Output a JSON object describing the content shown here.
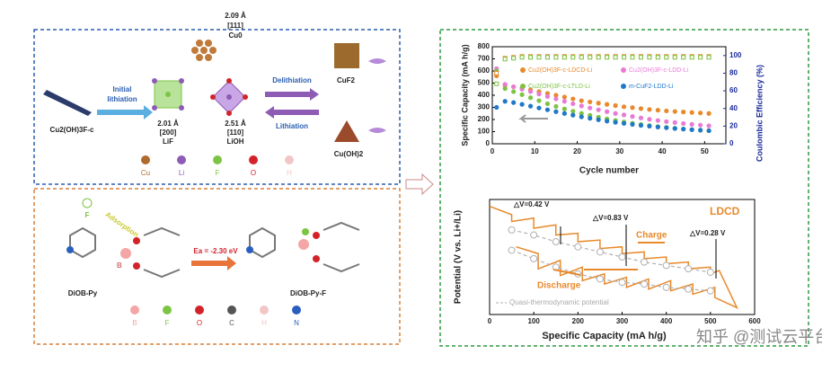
{
  "schematic_top": {
    "precursor": "Cu2(OH)3F-c",
    "initial": "Initial",
    "lithiation1": "lithiation",
    "cu_d": "2.09 Å",
    "cu_plane": "[111]",
    "cu_name": "Cu0",
    "lif_d": "2.01 Å",
    "lif_plane": "[200]",
    "lif_name": "LiF",
    "lioh_d": "2.51 Å",
    "lioh_plane": "[110]",
    "lioh_name": "LiOH",
    "delithiation": "Delithiation",
    "lithiation2": "Lithiation",
    "cuf2": "CuF2",
    "cuoh2": "Cu(OH)2",
    "atoms": [
      "Cu",
      "Li",
      "F",
      "O",
      "H"
    ]
  },
  "schematic_bottom": {
    "f_label": "F",
    "adsorption": "Adsorption",
    "b_label": "B",
    "energy": "Ea = -2.30 eV",
    "reactant": "DiOB-Py",
    "product": "DiOB-Py-F",
    "atoms": [
      "B",
      "F",
      "O",
      "C",
      "H",
      "N"
    ]
  },
  "watermark": "知乎 @测试云平台",
  "chart_data": [
    {
      "type": "scatter",
      "xlabel": "Cycle number",
      "ylabel": "Specific Capacity (mA h/g)",
      "y2label": "Coulombic Efficiency (%)",
      "x": [
        1,
        3,
        5,
        7,
        9,
        11,
        13,
        15,
        17,
        19,
        21,
        23,
        25,
        27,
        29,
        31,
        33,
        35,
        37,
        39,
        41,
        43,
        45,
        47,
        49,
        51
      ],
      "xlim": [
        0,
        55
      ],
      "xticks": [
        0,
        10,
        20,
        30,
        40,
        50
      ],
      "ylim": [
        0,
        800
      ],
      "yticks": [
        0,
        100,
        200,
        300,
        400,
        500,
        600,
        700,
        800
      ],
      "y2lim": [
        0,
        110
      ],
      "y2ticks": [
        0,
        20,
        40,
        60,
        80,
        100
      ],
      "series": [
        {
          "name": "Cu2(OH)3F-c-LDCD-Li",
          "color": "#e8892b",
          "values": [
            560,
            480,
            470,
            460,
            445,
            430,
            415,
            400,
            385,
            370,
            355,
            345,
            335,
            325,
            315,
            305,
            298,
            290,
            283,
            277,
            271,
            266,
            262,
            258,
            254,
            250
          ]
        },
        {
          "name": "Cu2(OH)3F-c-LDD-Li",
          "color": "#e97bd6",
          "values": [
            620,
            490,
            470,
            450,
            430,
            410,
            390,
            370,
            350,
            330,
            312,
            295,
            280,
            265,
            250,
            238,
            225,
            213,
            202,
            192,
            183,
            175,
            167,
            160,
            154,
            148
          ]
        },
        {
          "name": "Cu2(OH)3F-c-LTLD-Li",
          "color": "#7dc242",
          "values": [
            600,
            455,
            430,
            405,
            380,
            355,
            330,
            308,
            287,
            268,
            250,
            234,
            219,
            205,
            192,
            180,
            169,
            159,
            150,
            142,
            135,
            128,
            122,
            117,
            112,
            108
          ]
        },
        {
          "name": "m-CuF2-LDD-Li",
          "color": "#1f78c8",
          "values": [
            300,
            350,
            340,
            325,
            310,
            295,
            280,
            265,
            250,
            236,
            222,
            210,
            198,
            187,
            177,
            168,
            160,
            152,
            145,
            138,
            132,
            126,
            121,
            116,
            112,
            108
          ]
        },
        {
          "color": "#e8892b",
          "axis": "y2",
          "values": [
            80,
            97,
            98,
            99,
            99,
            99,
            99,
            99,
            99,
            99,
            99,
            99,
            99,
            99,
            99,
            99,
            99,
            99,
            99,
            99,
            99,
            99,
            99,
            99,
            99,
            99
          ]
        },
        {
          "color": "#7dc242",
          "axis": "y2",
          "values": [
            68,
            96,
            97,
            98,
            98,
            98,
            98,
            98,
            98,
            98,
            98,
            98,
            98,
            98,
            98,
            98,
            98,
            98,
            98,
            98,
            98,
            98,
            98,
            98,
            98,
            98
          ]
        }
      ]
    },
    {
      "type": "line",
      "xlabel": "Specific Capacity (mA h/g)",
      "ylabel": "Potential (V vs. Li+/Li)",
      "xlim": [
        0,
        600
      ],
      "xticks": [
        0,
        100,
        200,
        300,
        400,
        500,
        600
      ],
      "ylim": [
        0.8,
        4.2
      ],
      "annotations": [
        "△V=0.42 V",
        "△V=0.83 V",
        "△V=0.28 V",
        "LDCD",
        "Charge",
        "Discharge"
      ],
      "series": [
        {
          "color": "#e8892b",
          "x": [
            0,
            50,
            50,
            100,
            100,
            150,
            150,
            200,
            200,
            250,
            250,
            300,
            300,
            350,
            350,
            400,
            400,
            450,
            450,
            500,
            500,
            520,
            560,
            510,
            510,
            460,
            460,
            410,
            410,
            360,
            360,
            310,
            310,
            260,
            260,
            210,
            210,
            160,
            160,
            110,
            110,
            60
          ],
          "values": [
            4.0,
            3.75,
            3.55,
            3.65,
            3.35,
            3.45,
            3.15,
            3.2,
            2.95,
            3.0,
            2.75,
            2.8,
            2.6,
            2.65,
            2.45,
            2.5,
            2.3,
            2.35,
            2.15,
            2.2,
            2.0,
            2.1,
            1.0,
            1.3,
            1.6,
            1.4,
            1.7,
            1.5,
            1.8,
            1.55,
            1.85,
            1.6,
            1.9,
            1.7,
            2.0,
            1.8,
            2.2,
            1.95,
            2.4,
            2.15,
            2.6,
            2.8
          ]
        },
        {
          "name": "Quasi-thermodynamic potential",
          "color": "#b0b0b0",
          "x": [
            50,
            100,
            150,
            200,
            250,
            300,
            350,
            400,
            450,
            500,
            null,
            50,
            100,
            150,
            200,
            250,
            300,
            350,
            400,
            450,
            500
          ],
          "values": [
            3.3,
            3.15,
            2.95,
            2.8,
            2.65,
            2.5,
            2.35,
            2.25,
            2.15,
            2.05,
            null,
            2.7,
            2.45,
            2.2,
            2.0,
            1.85,
            1.75,
            1.7,
            1.6,
            1.55,
            1.5
          ]
        }
      ]
    }
  ]
}
